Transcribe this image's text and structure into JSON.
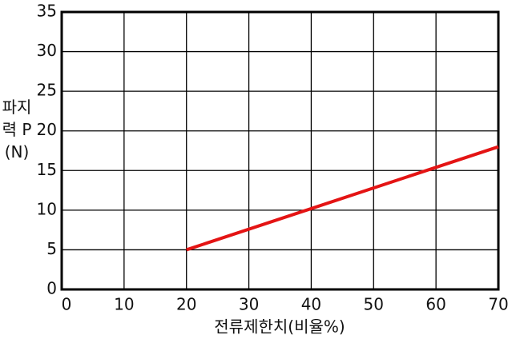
{
  "chart_data": {
    "type": "line",
    "x_label": "전류제한치(비율%)",
    "y_label": "파지력 P (N)",
    "x": [
      20,
      70
    ],
    "series": [
      {
        "name": null,
        "color": "#e41414",
        "values": [
          5,
          18
        ]
      }
    ],
    "xlim": [
      0,
      70
    ],
    "xticks": [
      0,
      10,
      20,
      30,
      40,
      50,
      60,
      70
    ],
    "ylim": [
      0,
      35
    ],
    "yticks": [
      0,
      5,
      10,
      15,
      20,
      25,
      30,
      35
    ],
    "grid": true
  }
}
